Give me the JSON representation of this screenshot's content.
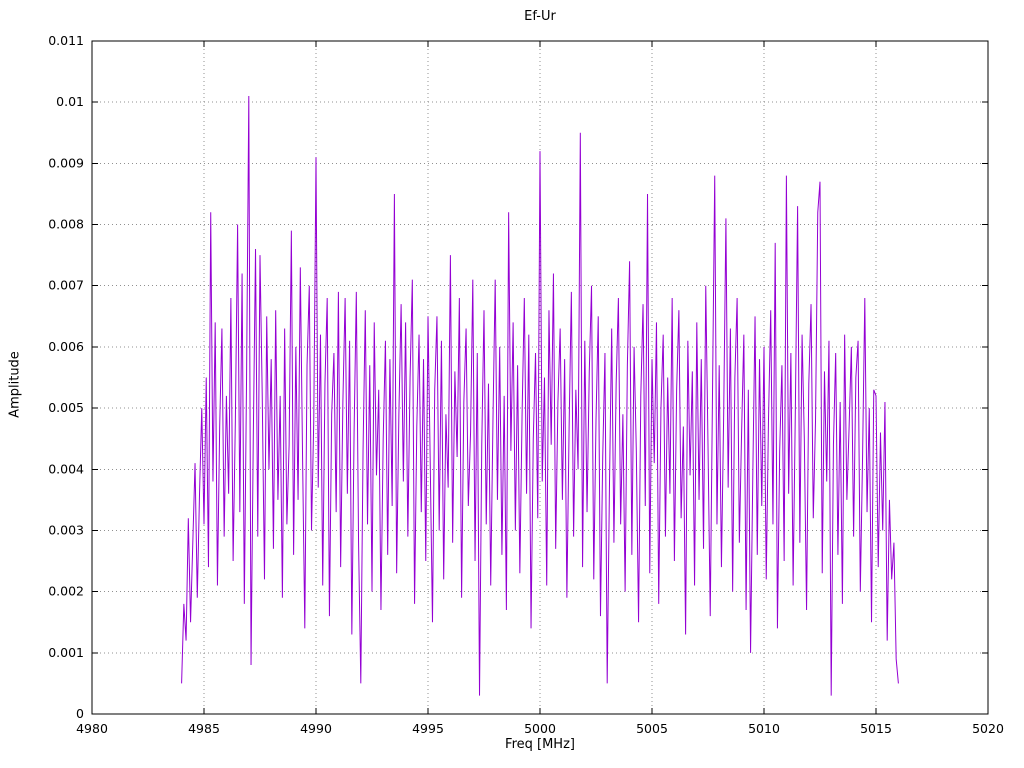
{
  "page": {
    "background": "#ffffff"
  },
  "chart_data": {
    "type": "line",
    "title": "Ef-Ur",
    "xlabel": "Freq [MHz]",
    "ylabel": "Amplitude",
    "xlim": [
      4980,
      5020
    ],
    "ylim": [
      0,
      0.011
    ],
    "x_ticks": [
      4980,
      4985,
      4990,
      4995,
      5000,
      5005,
      5010,
      5015,
      5020
    ],
    "x_tick_labels": [
      "4980",
      "4985",
      "4990",
      "4995",
      "5000",
      "5005",
      "5010",
      "5015",
      "5020"
    ],
    "y_ticks": [
      0,
      0.001,
      0.002,
      0.003,
      0.004,
      0.005,
      0.006,
      0.007,
      0.008,
      0.009,
      0.01,
      0.011
    ],
    "y_tick_labels": [
      "0",
      "0.001",
      "0.002",
      "0.003",
      "0.004",
      "0.005",
      "0.006",
      "0.007",
      "0.008",
      "0.009",
      "0.01",
      "0.011"
    ],
    "grid": true,
    "legend": "none",
    "line_color": "#9400d3",
    "signal_band_mhz": [
      4984,
      5016
    ],
    "notable_peaks": [
      {
        "x": 4987.0,
        "y": 0.0101
      },
      {
        "x": 5001.8,
        "y": 0.0095
      },
      {
        "x": 5000.0,
        "y": 0.0092
      },
      {
        "x": 4990.0,
        "y": 0.0091
      },
      {
        "x": 5007.8,
        "y": 0.0088
      },
      {
        "x": 5011.0,
        "y": 0.0088
      },
      {
        "x": 5012.5,
        "y": 0.0087
      },
      {
        "x": 4993.5,
        "y": 0.0085
      },
      {
        "x": 5004.8,
        "y": 0.0085
      },
      {
        "x": 4985.3,
        "y": 0.0082
      },
      {
        "x": 4998.6,
        "y": 0.0082
      },
      {
        "x": 5008.3,
        "y": 0.0081
      }
    ],
    "series": [
      {
        "name": "Ef-Ur",
        "x_start": 4984.0,
        "x_step": 0.1,
        "y": [
          0.0005,
          0.0018,
          0.0012,
          0.0032,
          0.0015,
          0.0028,
          0.0041,
          0.0019,
          0.0036,
          0.005,
          0.0031,
          0.0055,
          0.0024,
          0.0082,
          0.0038,
          0.0064,
          0.0021,
          0.0047,
          0.0063,
          0.0029,
          0.0052,
          0.0036,
          0.0068,
          0.0025,
          0.0048,
          0.008,
          0.0033,
          0.0072,
          0.0018,
          0.0055,
          0.0101,
          0.0008,
          0.0045,
          0.0076,
          0.0029,
          0.0075,
          0.0052,
          0.0022,
          0.0065,
          0.004,
          0.0058,
          0.0027,
          0.0066,
          0.0035,
          0.0052,
          0.0019,
          0.0063,
          0.0031,
          0.0044,
          0.0079,
          0.0026,
          0.006,
          0.0035,
          0.0073,
          0.0042,
          0.0014,
          0.0057,
          0.007,
          0.003,
          0.0048,
          0.0091,
          0.0037,
          0.0062,
          0.0021,
          0.0054,
          0.0068,
          0.0016,
          0.0049,
          0.0059,
          0.0033,
          0.0069,
          0.0024,
          0.0051,
          0.0068,
          0.0036,
          0.0061,
          0.0013,
          0.0046,
          0.0069,
          0.0028,
          0.0005,
          0.0043,
          0.0066,
          0.0031,
          0.0057,
          0.002,
          0.0064,
          0.0039,
          0.0053,
          0.0017,
          0.0045,
          0.0061,
          0.0026,
          0.0058,
          0.0034,
          0.0085,
          0.0023,
          0.0049,
          0.0067,
          0.0038,
          0.0064,
          0.0029,
          0.0055,
          0.0071,
          0.0018,
          0.0047,
          0.0062,
          0.0033,
          0.0058,
          0.0025,
          0.0065,
          0.0041,
          0.0015,
          0.0053,
          0.0065,
          0.003,
          0.0061,
          0.0022,
          0.0049,
          0.0037,
          0.0075,
          0.0028,
          0.0056,
          0.0042,
          0.0068,
          0.0019,
          0.0051,
          0.0063,
          0.0034,
          0.0046,
          0.0071,
          0.0025,
          0.0059,
          0.0003,
          0.0044,
          0.0066,
          0.0031,
          0.0054,
          0.0021,
          0.0048,
          0.0071,
          0.0035,
          0.006,
          0.0026,
          0.0052,
          0.0017,
          0.0082,
          0.0043,
          0.0064,
          0.003,
          0.0057,
          0.0023,
          0.0049,
          0.0068,
          0.0036,
          0.0062,
          0.0014,
          0.0045,
          0.0059,
          0.0032,
          0.0092,
          0.0038,
          0.0055,
          0.0021,
          0.0066,
          0.0044,
          0.0072,
          0.0027,
          0.0051,
          0.0063,
          0.0035,
          0.0058,
          0.0019,
          0.0047,
          0.0069,
          0.0029,
          0.0053,
          0.004,
          0.0095,
          0.0024,
          0.0061,
          0.0033,
          0.0056,
          0.007,
          0.0022,
          0.0048,
          0.0065,
          0.0016,
          0.0042,
          0.0059,
          0.0005,
          0.0037,
          0.0063,
          0.0028,
          0.0054,
          0.0068,
          0.0031,
          0.0049,
          0.002,
          0.0057,
          0.0074,
          0.0026,
          0.006,
          0.0043,
          0.0015,
          0.0052,
          0.0067,
          0.0034,
          0.0085,
          0.0023,
          0.0058,
          0.0041,
          0.0064,
          0.0018,
          0.005,
          0.0062,
          0.0029,
          0.0055,
          0.0036,
          0.0068,
          0.0025,
          0.0053,
          0.0066,
          0.0032,
          0.0047,
          0.0013,
          0.0061,
          0.0039,
          0.0056,
          0.0021,
          0.0064,
          0.0035,
          0.0058,
          0.0027,
          0.007,
          0.0044,
          0.0016,
          0.0052,
          0.0088,
          0.0031,
          0.0057,
          0.0024,
          0.0049,
          0.0081,
          0.0037,
          0.0063,
          0.002,
          0.0055,
          0.0068,
          0.0028,
          0.0046,
          0.0062,
          0.0017,
          0.0053,
          0.001,
          0.0039,
          0.0065,
          0.0026,
          0.0058,
          0.0034,
          0.006,
          0.0022,
          0.0048,
          0.0066,
          0.0031,
          0.0077,
          0.0014,
          0.0043,
          0.0057,
          0.0025,
          0.0088,
          0.0036,
          0.0059,
          0.0021,
          0.005,
          0.0083,
          0.0028,
          0.0062,
          0.0045,
          0.0017,
          0.0054,
          0.0067,
          0.0032,
          0.0048,
          0.0082,
          0.0087,
          0.0023,
          0.0056,
          0.0038,
          0.0061,
          0.0003,
          0.0044,
          0.0059,
          0.0026,
          0.0051,
          0.0018,
          0.0062,
          0.0035,
          0.0047,
          0.006,
          0.0029,
          0.0055,
          0.0061,
          0.002,
          0.0042,
          0.0068,
          0.0033,
          0.005,
          0.0015,
          0.0053,
          0.0052,
          0.0024,
          0.0046,
          0.003,
          0.0051,
          0.0012,
          0.0035,
          0.0022,
          0.0028,
          0.0009,
          0.0005
        ]
      }
    ]
  }
}
